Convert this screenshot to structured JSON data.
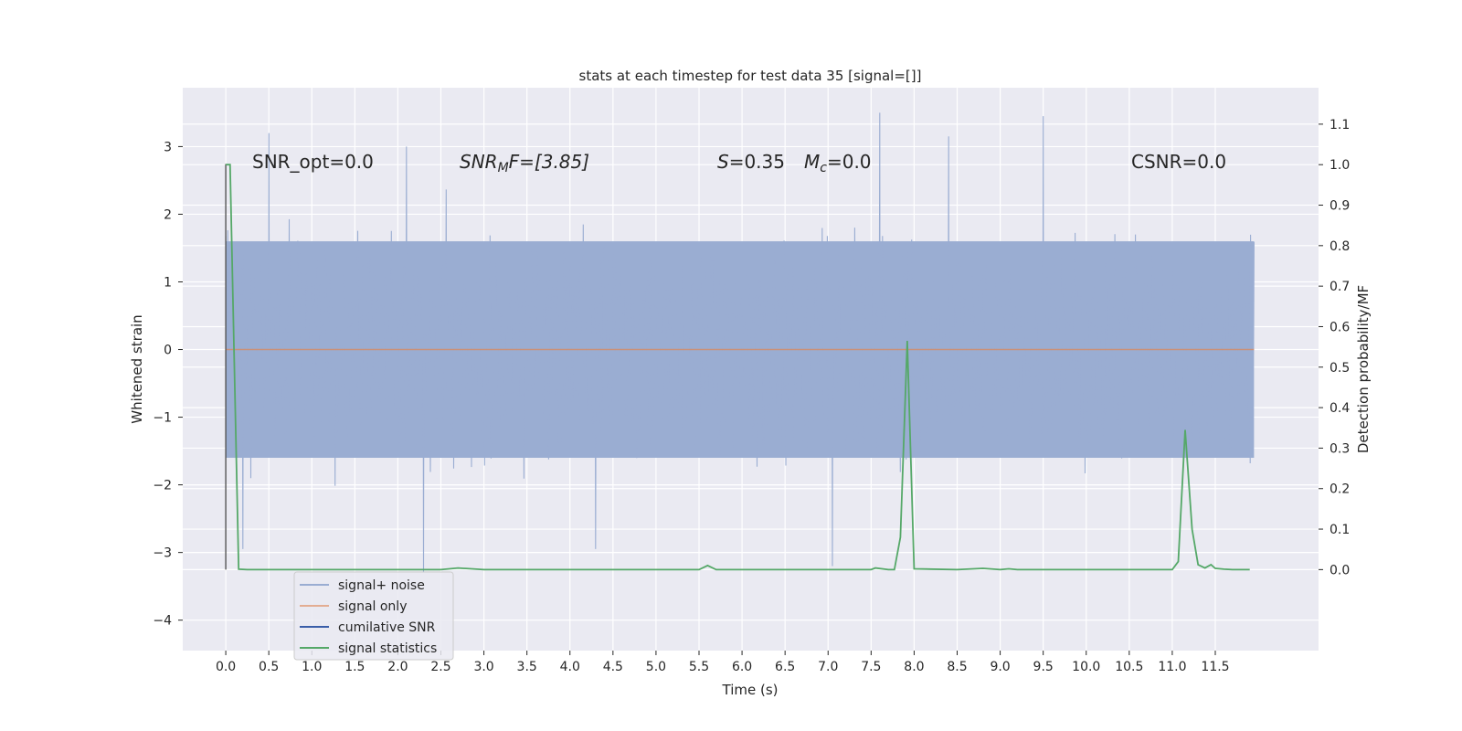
{
  "chart_data": {
    "type": "line",
    "title": "stats at each timestep for test data 35 [signal=[]]",
    "xlabel": "Time (s)",
    "ylabel": "Whitened strain",
    "y2label": "Detection probability/MF",
    "xlim": [
      -0.5,
      12.7
    ],
    "ylim": [
      -4.45,
      3.87
    ],
    "y2lim": [
      -0.2,
      1.19
    ],
    "x_ticks": [
      0.0,
      0.5,
      1.0,
      1.5,
      2.0,
      2.5,
      3.0,
      3.5,
      4.0,
      4.5,
      5.0,
      5.5,
      6.0,
      6.5,
      7.0,
      7.5,
      8.0,
      8.5,
      9.0,
      9.5,
      10.0,
      10.5,
      11.0,
      11.5
    ],
    "x_tick_labels": [
      "0.0",
      "0.5",
      "1.0",
      "1.5",
      "2.0",
      "2.5",
      "3.0",
      "3.5",
      "4.0",
      "4.5",
      "5.0",
      "5.5",
      "6.0",
      "6.5",
      "7.0",
      "7.5",
      "8.0",
      "8.5",
      "9.0",
      "9.5",
      "10.0",
      "10.5",
      "11.0",
      "11.5"
    ],
    "y_ticks": [
      3,
      2,
      1,
      0,
      -1,
      -2,
      -3,
      -4
    ],
    "y_tick_labels": [
      "3",
      "2",
      "1",
      "0",
      "−1",
      "−2",
      "−3",
      "−4"
    ],
    "y2_ticks": [
      1.1,
      1.0,
      0.9,
      0.8,
      0.7,
      0.6,
      0.5,
      0.4,
      0.3,
      0.2,
      0.1,
      0.0
    ],
    "y2_tick_labels": [
      "1.1",
      "1.0",
      "0.9",
      "0.8",
      "0.7",
      "0.6",
      "0.5",
      "0.4",
      "0.3",
      "0.2",
      "0.1",
      "0.0"
    ],
    "grid": true,
    "legend_position": "lower-left",
    "noise": {
      "t_start": 0.0,
      "t_end": 11.95,
      "typical_range": [
        -1.6,
        1.6
      ],
      "peaks": [
        {
          "t": 0.5,
          "v": 3.2
        },
        {
          "t": 2.1,
          "v": 3.0
        },
        {
          "t": 7.6,
          "v": 3.5
        },
        {
          "t": 8.4,
          "v": 3.15
        },
        {
          "t": 9.5,
          "v": 3.45
        },
        {
          "t": 2.3,
          "v": -3.3
        },
        {
          "t": 7.05,
          "v": -3.2
        },
        {
          "t": 4.3,
          "v": -2.95
        },
        {
          "t": 0.2,
          "v": -2.95
        }
      ]
    },
    "series": [
      {
        "name": "signal+ noise",
        "axis": "left",
        "color": "#4c72b0"
      },
      {
        "name": "signal only",
        "axis": "left",
        "color": "#dd8452",
        "x": [
          0.0,
          11.95
        ],
        "y": [
          0.0,
          0.0
        ]
      },
      {
        "name": "cumilative SNR",
        "axis": "left",
        "color": "#4c72b0"
      },
      {
        "name": "signal statistics",
        "axis": "right",
        "color": "#55a868",
        "x": [
          0.0,
          0.05,
          0.1,
          0.15,
          0.25,
          0.5,
          1.0,
          2.0,
          2.5,
          2.7,
          3.0,
          4.0,
          5.0,
          5.5,
          5.6,
          5.7,
          6.0,
          7.0,
          7.5,
          7.55,
          7.7,
          7.77,
          7.84,
          7.92,
          8.0,
          8.5,
          8.8,
          9.0,
          9.1,
          9.2,
          10.0,
          11.0,
          11.07,
          11.15,
          11.23,
          11.3,
          11.38,
          11.45,
          11.5,
          11.6,
          11.7,
          11.9
        ],
        "y": [
          1.0,
          1.0,
          0.5,
          0.001,
          0.0,
          0.0,
          0.0,
          0.0,
          0.0,
          0.004,
          0.0,
          0.0,
          0.0,
          0.0,
          0.01,
          0.0,
          0.0,
          0.0,
          0.0,
          0.004,
          0.0,
          0.0,
          0.08,
          0.565,
          0.002,
          0.0,
          0.003,
          0.0,
          0.002,
          0.0,
          0.0,
          0.0,
          0.02,
          0.345,
          0.1,
          0.012,
          0.004,
          0.012,
          0.003,
          0.001,
          0.0,
          0.0
        ]
      }
    ],
    "cumulative_snr_step": {
      "x": [
        0.0,
        0.05
      ],
      "y2": [
        1.0,
        0.0
      ]
    },
    "annotations": [
      {
        "parts": [
          {
            "text": "SNR_opt=0.0",
            "italic": false
          }
        ]
      },
      {
        "parts": [
          {
            "text": "SNR",
            "italic": true
          },
          {
            "text": "M",
            "italic": true,
            "sub": true
          },
          {
            "text": "F=[3.85]",
            "italic": true
          }
        ]
      },
      {
        "parts": [
          {
            "text": "S",
            "italic": true
          },
          {
            "text": "=0.35",
            "italic": false
          }
        ]
      },
      {
        "parts": [
          {
            "text": "M",
            "italic": true
          },
          {
            "text": "c",
            "italic": true,
            "sub": true
          },
          {
            "text": "=0.0",
            "italic": false
          }
        ]
      },
      {
        "parts": [
          {
            "text": "CSNR=0.0",
            "italic": false
          }
        ]
      }
    ]
  }
}
